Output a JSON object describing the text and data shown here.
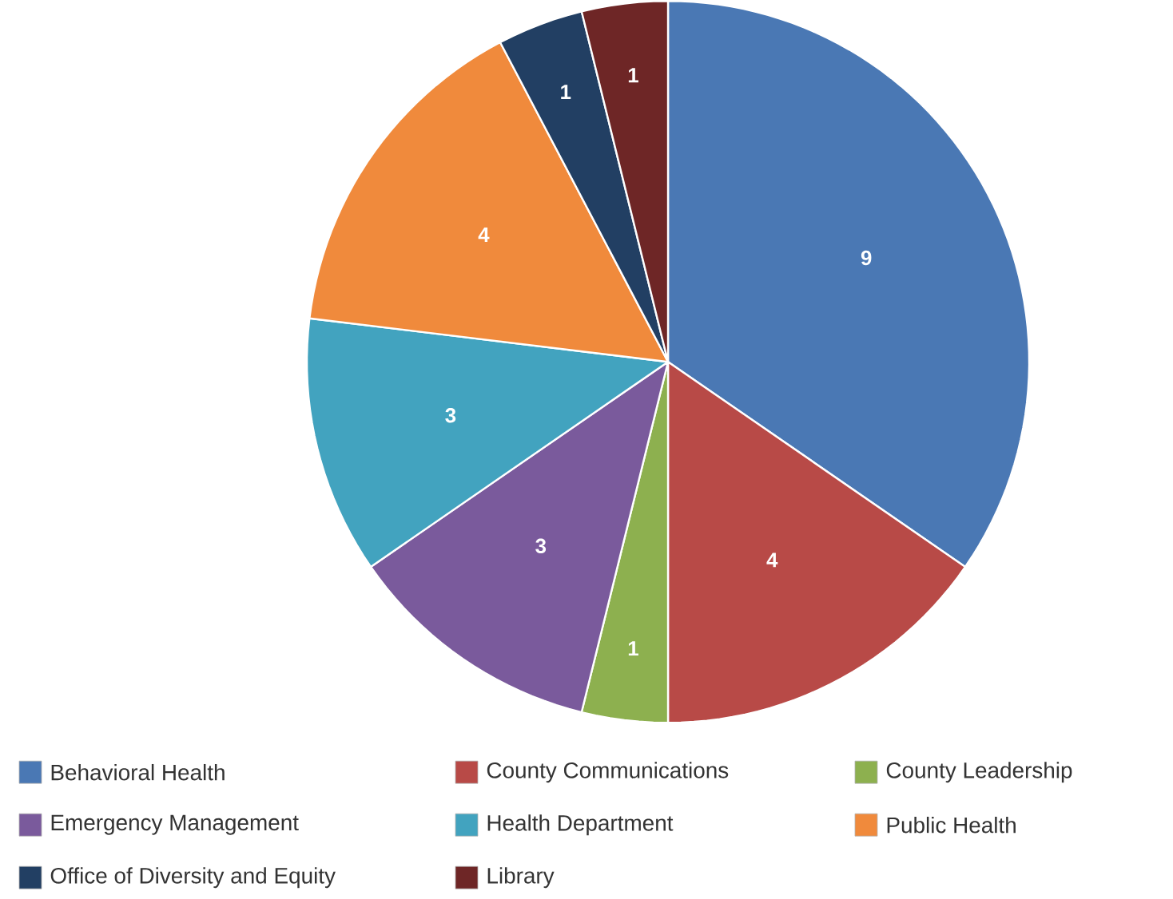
{
  "chart_data": {
    "type": "pie",
    "categories": [
      "Behavioral Health",
      "County Communications",
      "County Leadership",
      "Emergency Management",
      "Health Department",
      "Public Health",
      "Office of Diversity and Equity",
      "Library"
    ],
    "values": [
      9,
      4,
      1,
      3,
      3,
      4,
      1,
      1
    ],
    "colors": [
      "#4a78b4",
      "#b84a47",
      "#8db04f",
      "#7a5a9c",
      "#42a3bf",
      "#f08a3c",
      "#223f63",
      "#6e2626"
    ],
    "data_labels": true,
    "legend": "bottom"
  }
}
